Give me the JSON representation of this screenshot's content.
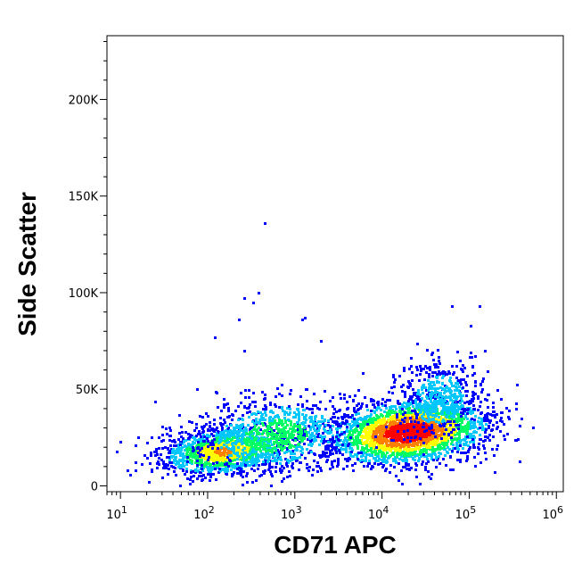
{
  "chart_data": {
    "type": "scatter",
    "title": "",
    "xlabel": "CD71 APC",
    "ylabel": "Side Scatter",
    "x_scale": "log",
    "xlim": [
      7,
      1200000
    ],
    "ylim": [
      -3000,
      233000
    ],
    "grid": false,
    "legend": "none",
    "x_ticks": [
      {
        "value": 10,
        "base": "10",
        "exp": "1"
      },
      {
        "value": 100,
        "base": "10",
        "exp": "2"
      },
      {
        "value": 1000,
        "base": "10",
        "exp": "3"
      },
      {
        "value": 10000,
        "base": "10",
        "exp": "4"
      },
      {
        "value": 100000,
        "base": "10",
        "exp": "5"
      },
      {
        "value": 1000000,
        "base": "10",
        "exp": "6"
      }
    ],
    "y_ticks": [
      {
        "value": 0,
        "label": "0"
      },
      {
        "value": 50000,
        "label": "50K"
      },
      {
        "value": 100000,
        "label": "100K"
      },
      {
        "value": 150000,
        "label": "150K"
      },
      {
        "value": 200000,
        "label": "200K"
      }
    ],
    "density_colormap": [
      "#0000ff",
      "#00c8ff",
      "#00ff64",
      "#ffff00",
      "#ff8000",
      "#ff0000"
    ],
    "populations": [
      {
        "center_x": 20000,
        "center_y": 28000,
        "log_spread_x": 0.45,
        "spread_y": 8000,
        "points": 2600,
        "color_weight": 1.0
      },
      {
        "center_x": 150,
        "center_y": 18000,
        "log_spread_x": 0.35,
        "spread_y": 6000,
        "points": 1300,
        "color_weight": 0.7
      },
      {
        "center_x": 600,
        "center_y": 26000,
        "log_spread_x": 0.45,
        "spread_y": 10000,
        "points": 900,
        "color_weight": 0.45
      },
      {
        "center_x": 45000,
        "center_y": 45000,
        "log_spread_x": 0.25,
        "spread_y": 11000,
        "points": 500,
        "color_weight": 0.3
      }
    ],
    "sparse_points": [
      [
        450,
        136000
      ],
      [
        380,
        100000
      ],
      [
        260,
        97000
      ],
      [
        330,
        95000
      ],
      [
        120,
        77000
      ],
      [
        230,
        86000
      ],
      [
        1200,
        86000
      ],
      [
        1300,
        87000
      ],
      [
        63000,
        93000
      ],
      [
        130000,
        93000
      ],
      [
        150000,
        45000
      ],
      [
        230000,
        45000
      ],
      [
        12,
        8000
      ],
      [
        9,
        18000
      ],
      [
        10,
        23000
      ],
      [
        15,
        21000
      ],
      [
        75,
        50000
      ],
      [
        260,
        70000
      ],
      [
        2000,
        75000
      ]
    ]
  }
}
